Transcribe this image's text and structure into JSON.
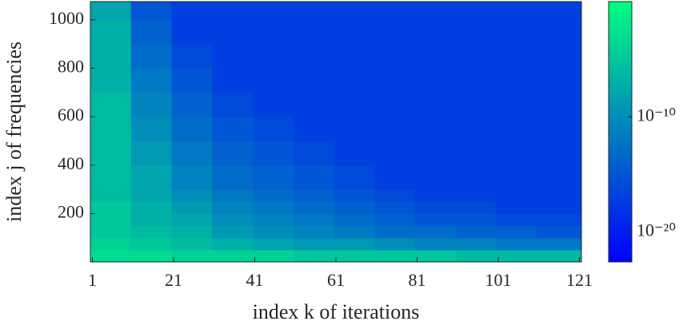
{
  "chart_data": {
    "type": "heatmap",
    "xlabel": "index k of iterations",
    "ylabel": "index j of frequencies",
    "xlim": [
      0.5,
      121.5
    ],
    "xticks": [
      1,
      21,
      41,
      61,
      81,
      101,
      121
    ],
    "ylim": [
      0.5,
      1075
    ],
    "yticks": [
      200,
      400,
      600,
      800,
      1000
    ],
    "xbins": [
      0.5,
      10.5,
      20.5,
      30.5,
      40.5,
      50.5,
      60.5,
      70.5,
      80.5,
      90.5,
      100.5,
      110.5,
      121.5
    ],
    "ybins": [
      0.5,
      50,
      100,
      150,
      200,
      250,
      300,
      400,
      500,
      600,
      700,
      800,
      900,
      1000,
      1075
    ],
    "z": [
      [
        0.001,
        0.001,
        0.0001,
        0.0001,
        0.0001,
        1e-05,
        1e-05,
        1e-05,
        1e-05,
        1e-06,
        1e-06,
        1e-06
      ],
      [
        0.0001,
        1e-05,
        1e-06,
        1e-07,
        1e-08,
        1e-09,
        1e-09,
        1e-10,
        1e-11,
        1e-11,
        1e-12,
        1e-12
      ],
      [
        1e-05,
        1e-06,
        1e-07,
        1e-09,
        1e-10,
        1e-11,
        1e-12,
        1e-13,
        1e-13,
        1e-14,
        1e-14,
        1e-15
      ],
      [
        1e-05,
        1e-07,
        1e-08,
        1e-10,
        1e-11,
        1e-12,
        1e-13,
        1e-14,
        1e-15,
        1e-15,
        1e-16,
        1e-16
      ],
      [
        1e-05,
        1e-07,
        1e-09,
        1e-11,
        1e-12,
        1e-13,
        1e-14,
        1e-15,
        1e-16,
        1e-16,
        1e-17,
        1e-17
      ],
      [
        1e-06,
        1e-08,
        1e-10,
        1e-12,
        1e-13,
        1e-14,
        1e-15,
        1e-16,
        1e-17,
        1e-17,
        1e-17,
        1e-17
      ],
      [
        1e-06,
        1e-08,
        1e-11,
        1e-13,
        1e-14,
        1e-15,
        1e-16,
        1e-17,
        1e-17,
        1e-17,
        1e-17,
        1e-17
      ],
      [
        1e-06,
        1e-09,
        1e-12,
        1e-14,
        1e-15,
        1e-16,
        1e-17,
        1e-17,
        1e-17,
        1e-17,
        1e-17,
        1e-17
      ],
      [
        1e-06,
        1e-10,
        1e-13,
        1e-15,
        1e-16,
        1e-17,
        1e-17,
        1e-17,
        1e-17,
        1e-17,
        1e-17,
        1e-17
      ],
      [
        1e-06,
        1e-11,
        1e-14,
        1e-16,
        1e-17,
        1e-17,
        1e-17,
        1e-17,
        1e-17,
        1e-17,
        1e-17,
        1e-17
      ],
      [
        1e-07,
        1e-12,
        1e-15,
        1e-17,
        1e-17,
        1e-17,
        1e-17,
        1e-17,
        1e-17,
        1e-17,
        1e-17,
        1e-17
      ],
      [
        1e-07,
        1e-13,
        1e-16,
        1e-17,
        1e-17,
        1e-17,
        1e-17,
        1e-17,
        1e-17,
        1e-17,
        1e-17,
        1e-17
      ],
      [
        1e-07,
        1e-14,
        1e-17,
        1e-17,
        1e-17,
        1e-17,
        1e-17,
        1e-17,
        1e-17,
        1e-17,
        1e-17,
        1e-17
      ],
      [
        1e-08,
        1e-15,
        1e-17,
        1e-17,
        1e-17,
        1e-17,
        1e-17,
        1e-17,
        1e-17,
        1e-17,
        1e-17,
        1e-17
      ]
    ],
    "colorscale": "log",
    "colormap": [
      "#0000ff",
      "#00ff80"
    ],
    "clim": [
      2.5e-23,
      1
    ],
    "cticks": [
      {
        "value": 1e-20,
        "label": "10⁻²⁰"
      },
      {
        "value": 1e-10,
        "label": "10⁻¹⁰"
      }
    ]
  }
}
